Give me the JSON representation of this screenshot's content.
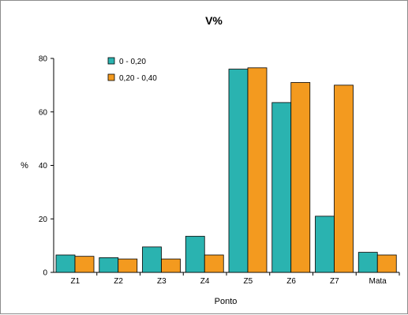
{
  "chart_data": {
    "type": "bar",
    "title": "V%",
    "xlabel": "Ponto",
    "ylabel": "%",
    "categories": [
      "Z1",
      "Z2",
      "Z3",
      "Z4",
      "Z5",
      "Z6",
      "Z7",
      "Mata"
    ],
    "series": [
      {
        "name": "0 - 0,20",
        "color": "#2ab3b0",
        "values": [
          6.5,
          5.5,
          9.5,
          13.5,
          76,
          63.5,
          21,
          7.5
        ]
      },
      {
        "name": "0,20 - 0,40",
        "color": "#f39a1f",
        "values": [
          6,
          5,
          5,
          6.5,
          76.5,
          71,
          70,
          6.5
        ]
      }
    ],
    "yticks": [
      0,
      20,
      40,
      60,
      80
    ],
    "ylim": [
      0,
      80
    ],
    "grid": false,
    "legend_position": "top-left"
  }
}
